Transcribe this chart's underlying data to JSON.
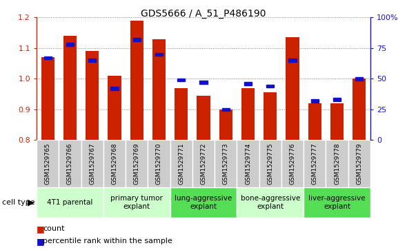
{
  "title": "GDS5666 / A_51_P486190",
  "samples": [
    "GSM1529765",
    "GSM1529766",
    "GSM1529767",
    "GSM1529768",
    "GSM1529769",
    "GSM1529770",
    "GSM1529771",
    "GSM1529772",
    "GSM1529773",
    "GSM1529774",
    "GSM1529775",
    "GSM1529776",
    "GSM1529777",
    "GSM1529778",
    "GSM1529779"
  ],
  "counts": [
    1.07,
    1.14,
    1.09,
    1.01,
    1.19,
    1.13,
    0.97,
    0.945,
    0.9,
    0.97,
    0.955,
    1.135,
    0.92,
    0.92,
    1.0
  ],
  "percentile_ranks": [
    67,
    78,
    65,
    42,
    82,
    70,
    49,
    47,
    25,
    46,
    44,
    65,
    32,
    33,
    50
  ],
  "bar_color": "#cc2200",
  "dot_color": "#1111cc",
  "ylim_left": [
    0.8,
    1.2
  ],
  "ylim_right": [
    0,
    100
  ],
  "yticks_left": [
    0.8,
    0.9,
    1.0,
    1.1,
    1.2
  ],
  "yticks_right": [
    0,
    25,
    50,
    75,
    100
  ],
  "ytick_labels_right": [
    "0",
    "25",
    "50",
    "75",
    "100%"
  ],
  "groups": [
    {
      "label": "4T1 parental",
      "start": 0,
      "end": 3,
      "light_green": true
    },
    {
      "label": "primary tumor\nexplant",
      "start": 3,
      "end": 6,
      "light_green": true
    },
    {
      "label": "lung-aggressive\nexplant",
      "start": 6,
      "end": 9,
      "light_green": false
    },
    {
      "label": "bone-aggressive\nexplant",
      "start": 9,
      "end": 12,
      "light_green": true
    },
    {
      "label": "liver-aggressive\nexplant",
      "start": 12,
      "end": 15,
      "light_green": false
    }
  ],
  "light_green": "#ccffcc",
  "dark_green": "#55dd55",
  "tick_box_gray": "#cccccc",
  "legend_count_label": "count",
  "legend_pct_label": "percentile rank within the sample",
  "cell_type_label": "cell type"
}
